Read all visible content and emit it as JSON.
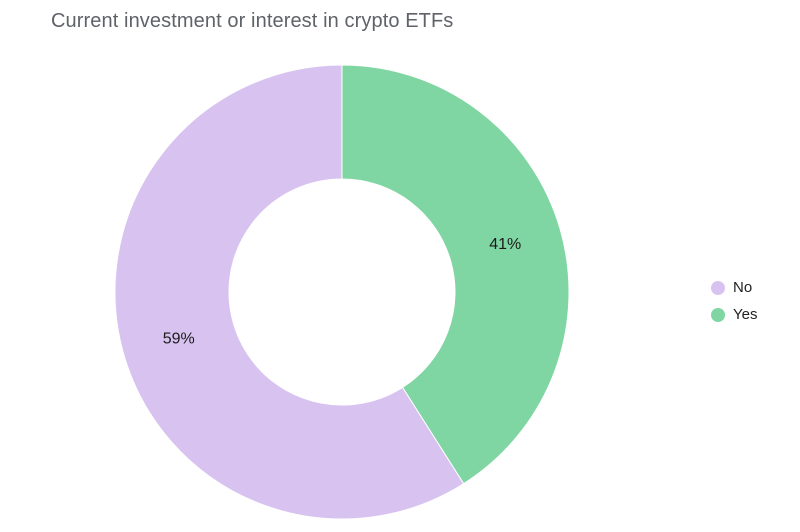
{
  "chart_data": {
    "type": "pie",
    "donut": true,
    "title": "Current investment or interest in crypto ETFs",
    "slices": [
      {
        "label": "No",
        "value": 59,
        "display": "59%",
        "color": "#d8c3f0"
      },
      {
        "label": "Yes",
        "value": 41,
        "display": "41%",
        "color": "#7fd6a2"
      }
    ],
    "legend_position": "right"
  }
}
